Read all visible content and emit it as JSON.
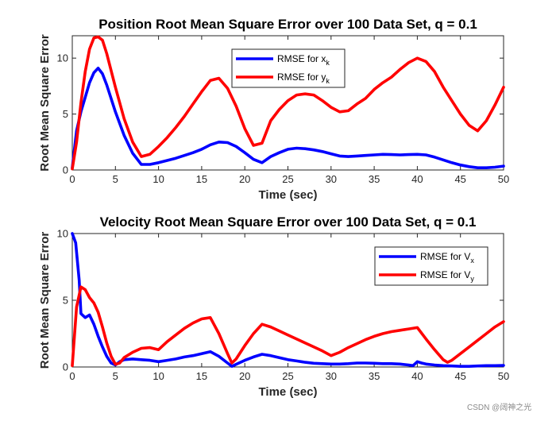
{
  "chart_data": [
    {
      "type": "line",
      "title": "Position Root Mean Square Error over 100 Data Set, q = 0.1",
      "xlabel": "Time (sec)",
      "ylabel": "Root Mean Square Error",
      "xlim": [
        0,
        50
      ],
      "ylim": [
        0,
        12
      ],
      "xticks": [
        0,
        5,
        10,
        15,
        20,
        25,
        30,
        35,
        40,
        45,
        50
      ],
      "yticks": [
        0,
        5,
        10
      ],
      "legend_position": "top-center",
      "series": [
        {
          "name": "RMSE for x",
          "name_sub": "k",
          "color": "#0000ff",
          "x": [
            0,
            0.5,
            1,
            1.5,
            2,
            2.5,
            3,
            3.5,
            4,
            5,
            6,
            7,
            8,
            9,
            10,
            11,
            12,
            13,
            14,
            15,
            16,
            17,
            18,
            19,
            20,
            21,
            22,
            23,
            24,
            25,
            26,
            27,
            28,
            29,
            30,
            31,
            32,
            33,
            34,
            35,
            36,
            37,
            38,
            39,
            40,
            41,
            42,
            43,
            44,
            45,
            46,
            47,
            48,
            49,
            50
          ],
          "y": [
            0.2,
            3.5,
            5.2,
            6.5,
            7.8,
            8.7,
            9.1,
            8.6,
            7.6,
            5.2,
            3.1,
            1.5,
            0.5,
            0.5,
            0.65,
            0.85,
            1.05,
            1.3,
            1.55,
            1.85,
            2.25,
            2.5,
            2.45,
            2.1,
            1.55,
            0.95,
            0.65,
            1.2,
            1.55,
            1.85,
            1.95,
            1.9,
            1.8,
            1.65,
            1.45,
            1.25,
            1.2,
            1.25,
            1.3,
            1.35,
            1.4,
            1.38,
            1.35,
            1.38,
            1.4,
            1.35,
            1.15,
            0.9,
            0.65,
            0.45,
            0.3,
            0.2,
            0.2,
            0.25,
            0.35
          ]
        },
        {
          "name": "RMSE for y",
          "name_sub": "k",
          "color": "#ff0000",
          "x": [
            0,
            0.5,
            1,
            1.5,
            2,
            2.5,
            3,
            3.5,
            4,
            5,
            6,
            7,
            8,
            9,
            10,
            11,
            12,
            13,
            14,
            15,
            16,
            17,
            18,
            19,
            20,
            21,
            22,
            23,
            24,
            25,
            26,
            27,
            28,
            29,
            30,
            31,
            32,
            33,
            34,
            35,
            36,
            37,
            38,
            39,
            40,
            41,
            42,
            43,
            44,
            45,
            46,
            47,
            48,
            49,
            50
          ],
          "y": [
            0.1,
            2.5,
            6,
            8.8,
            10.8,
            11.8,
            11.9,
            11.6,
            10.4,
            7.4,
            4.6,
            2.5,
            1.2,
            1.4,
            2.1,
            2.9,
            3.8,
            4.8,
            5.9,
            7.0,
            8.0,
            8.2,
            7.3,
            5.7,
            3.7,
            2.2,
            2.4,
            4.4,
            5.4,
            6.2,
            6.7,
            6.8,
            6.7,
            6.2,
            5.6,
            5.2,
            5.3,
            5.9,
            6.4,
            7.2,
            7.8,
            8.3,
            9.0,
            9.6,
            10.0,
            9.7,
            8.8,
            7.4,
            6.2,
            5.0,
            4.0,
            3.5,
            4.4,
            5.8,
            7.4
          ]
        }
      ]
    },
    {
      "type": "line",
      "title": "Velocity Root Mean Square Error over 100 Data Set, q = 0.1",
      "xlabel": "Time (sec)",
      "ylabel": "Root Mean Square Error",
      "xlim": [
        0,
        50
      ],
      "ylim": [
        0,
        10
      ],
      "xticks": [
        0,
        5,
        10,
        15,
        20,
        25,
        30,
        35,
        40,
        45,
        50
      ],
      "yticks": [
        0,
        5,
        10
      ],
      "legend_position": "top-right",
      "series": [
        {
          "name": "RMSE for V",
          "name_sub": "x",
          "color": "#0000ff",
          "x": [
            0,
            0.4,
            0.8,
            1,
            1.5,
            2,
            2.5,
            3,
            3.5,
            4,
            4.5,
            5,
            5.5,
            6,
            7,
            8,
            9,
            10,
            11,
            12,
            13,
            14,
            15,
            16,
            17,
            18,
            18.5,
            19,
            20,
            21,
            22,
            23,
            24,
            25,
            26,
            27,
            28,
            29,
            30,
            31,
            32,
            33,
            34,
            35,
            36,
            37,
            38,
            39,
            39.5,
            40,
            40.5,
            41,
            42,
            43,
            44,
            45,
            46,
            47,
            48,
            49,
            50
          ],
          "y": [
            10,
            9.3,
            6.5,
            4.0,
            3.7,
            3.9,
            3.2,
            2.3,
            1.5,
            0.8,
            0.3,
            0.15,
            0.4,
            0.55,
            0.6,
            0.55,
            0.5,
            0.4,
            0.5,
            0.6,
            0.75,
            0.85,
            1.0,
            1.15,
            0.8,
            0.3,
            0.05,
            0.2,
            0.5,
            0.75,
            0.95,
            0.85,
            0.7,
            0.55,
            0.45,
            0.35,
            0.28,
            0.25,
            0.22,
            0.22,
            0.25,
            0.3,
            0.3,
            0.28,
            0.25,
            0.25,
            0.22,
            0.15,
            0.1,
            0.4,
            0.3,
            0.22,
            0.15,
            0.1,
            0.08,
            0.05,
            0.05,
            0.08,
            0.1,
            0.1,
            0.12
          ]
        },
        {
          "name": "RMSE for V",
          "name_sub": "y",
          "color": "#ff0000",
          "x": [
            0,
            0.5,
            1,
            1.5,
            2,
            2.5,
            3,
            3.5,
            4,
            4.5,
            5,
            5.5,
            6,
            7,
            8,
            9,
            10,
            11,
            12,
            13,
            14,
            15,
            16,
            17,
            18,
            18.5,
            19,
            20,
            21,
            22,
            23,
            24,
            25,
            26,
            27,
            28,
            29,
            30,
            31,
            32,
            33,
            34,
            35,
            36,
            37,
            38,
            39,
            40,
            41,
            42,
            43,
            43.5,
            44,
            45,
            46,
            47,
            48,
            49,
            50
          ],
          "y": [
            0.1,
            4.5,
            6.0,
            5.8,
            5.2,
            4.8,
            4.1,
            3.0,
            1.8,
            0.8,
            0.2,
            0.3,
            0.7,
            1.1,
            1.4,
            1.45,
            1.3,
            1.9,
            2.4,
            2.9,
            3.3,
            3.6,
            3.7,
            2.5,
            1.0,
            0.3,
            0.6,
            1.6,
            2.5,
            3.2,
            3.0,
            2.7,
            2.4,
            2.1,
            1.8,
            1.5,
            1.2,
            0.85,
            1.1,
            1.45,
            1.75,
            2.05,
            2.3,
            2.5,
            2.65,
            2.75,
            2.85,
            2.95,
            2.1,
            1.3,
            0.55,
            0.35,
            0.5,
            1.0,
            1.5,
            2.0,
            2.5,
            3.0,
            3.4
          ]
        }
      ]
    }
  ],
  "watermark": "CSDN @阔神之光"
}
